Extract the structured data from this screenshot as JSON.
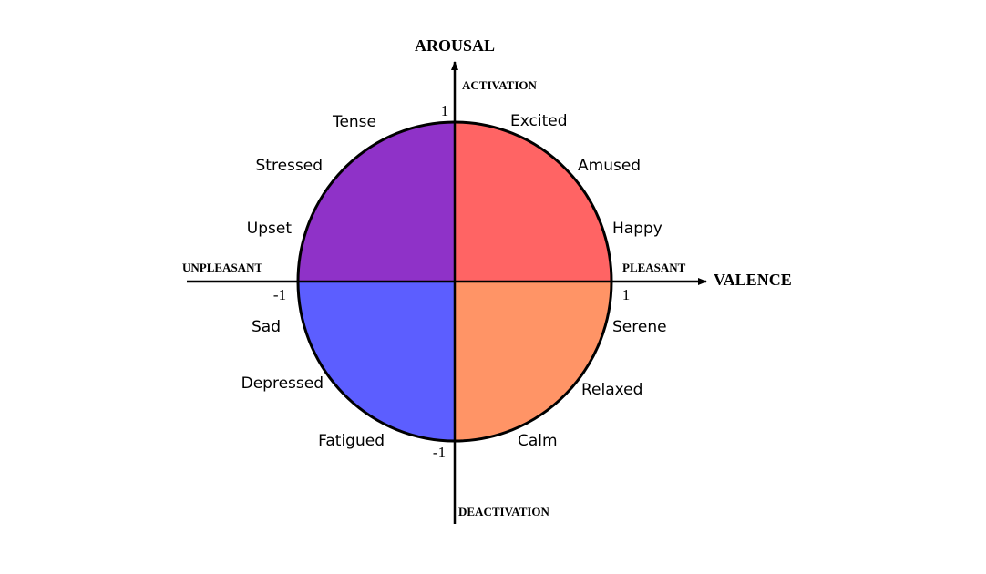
{
  "axes": {
    "vertical": {
      "title": "AROUSAL",
      "top_label": "ACTIVATION",
      "bottom_label": "DEACTIVATION",
      "max_tick": "1",
      "min_tick": "-1"
    },
    "horizontal": {
      "title": "VALENCE",
      "right_label": "PLEASANT",
      "left_label": "UNPLEASANT",
      "max_tick": "1",
      "min_tick": "-1"
    }
  },
  "quadrants": {
    "high_arousal_pleasant": {
      "color": "#FF6464"
    },
    "high_arousal_unpleasant": {
      "color": "#8F32C8"
    },
    "low_arousal_unpleasant": {
      "color": "#5C5EFF"
    },
    "low_arousal_pleasant": {
      "color": "#FF9466"
    }
  },
  "emotions": {
    "excited": "Excited",
    "amused": "Amused",
    "happy": "Happy",
    "tense": "Tense",
    "stressed": "Stressed",
    "upset": "Upset",
    "sad": "Sad",
    "depressed": "Depressed",
    "fatigued": "Fatigued",
    "serene": "Serene",
    "relaxed": "Relaxed",
    "calm": "Calm"
  }
}
